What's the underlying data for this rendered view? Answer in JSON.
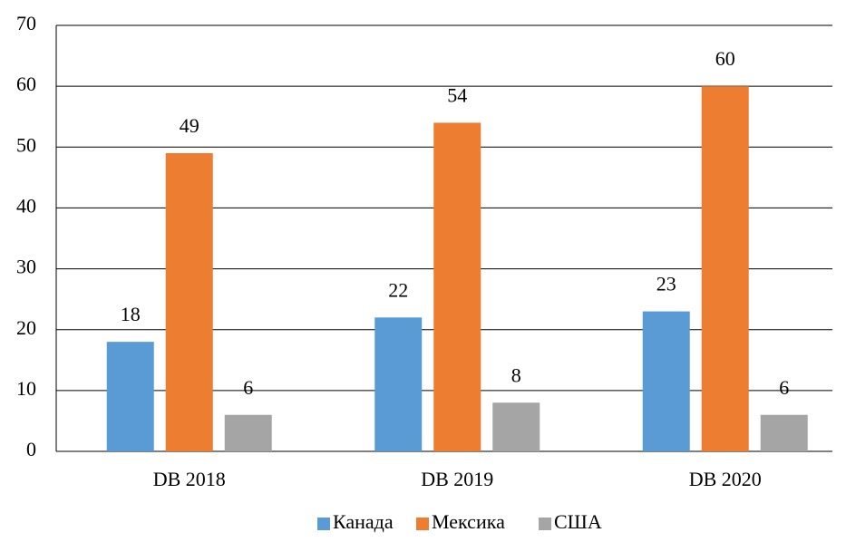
{
  "chart_data": {
    "type": "bar",
    "categories": [
      "DB 2018",
      "DB 2019",
      "DB 2020"
    ],
    "series": [
      {
        "name": "Канада",
        "color": "#5b9bd5",
        "values": [
          18,
          22,
          23
        ]
      },
      {
        "name": "Мексика",
        "color": "#ed7d31",
        "values": [
          49,
          54,
          60
        ]
      },
      {
        "name": "США",
        "color": "#a5a5a5",
        "values": [
          6,
          8,
          6
        ]
      }
    ],
    "ylim": [
      0,
      70
    ],
    "yticks": [
      0,
      10,
      20,
      30,
      40,
      50,
      60,
      70
    ],
    "grid": true,
    "legend": "bottom"
  }
}
